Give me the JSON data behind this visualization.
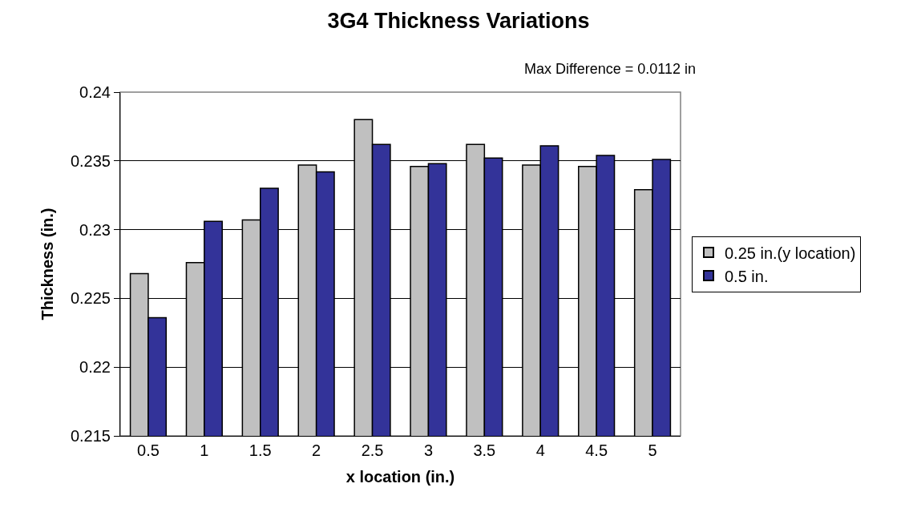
{
  "chart_data": {
    "type": "bar",
    "title": "3G4 Thickness Variations",
    "subtitle": "Max Difference = 0.0112 in",
    "xlabel": "x location (in.)",
    "ylabel": "Thickness (in.)",
    "categories": [
      "0.5",
      "1",
      "1.5",
      "2",
      "2.5",
      "3",
      "3.5",
      "4",
      "4.5",
      "5"
    ],
    "series": [
      {
        "name": "0.25 in.(y location)",
        "color": "#c0c0c0",
        "values": [
          0.2268,
          0.2276,
          0.2307,
          0.2347,
          0.238,
          0.2346,
          0.2362,
          0.2347,
          0.2346,
          0.2329
        ]
      },
      {
        "name": "0.5 in.",
        "color": "#333399",
        "values": [
          0.2236,
          0.2306,
          0.233,
          0.2342,
          0.2362,
          0.2348,
          0.2352,
          0.2361,
          0.2354,
          0.2351
        ]
      }
    ],
    "ylim": [
      0.215,
      0.24
    ],
    "yticks": [
      0.215,
      0.22,
      0.225,
      0.23,
      0.235,
      0.24
    ],
    "grid": "y",
    "legend": "right"
  }
}
